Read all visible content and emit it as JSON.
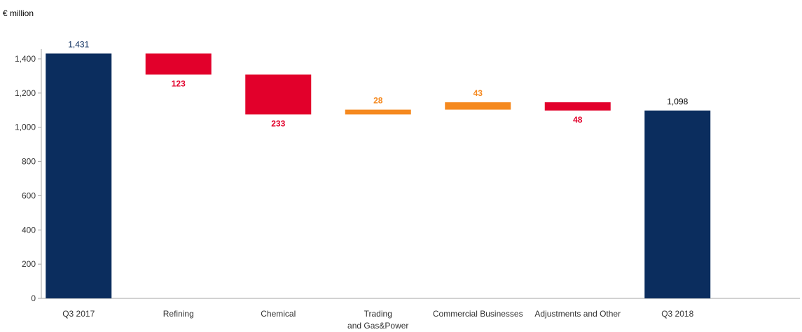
{
  "chart_data": {
    "type": "waterfall",
    "unit_label": "€ million",
    "ylim": [
      0,
      1400
    ],
    "yticks": [
      0,
      200,
      400,
      600,
      800,
      1000,
      1200,
      1400
    ],
    "ytick_labels": [
      "0",
      "200",
      "400",
      "600",
      "800",
      "1,000",
      "1,200",
      "1,400"
    ],
    "grid": false,
    "categories": [
      "Q3 2017",
      "Refining",
      "Chemical",
      "Trading\nand Gas&Power",
      "Commercial Businesses",
      "Adjustments and Other",
      "Q3 2018"
    ],
    "bars": [
      {
        "kind": "total",
        "start": 0,
        "end": 1431,
        "label": "1,431",
        "color": "#0b2d5e",
        "label_color": "#0b2d5e",
        "label_pos": "above"
      },
      {
        "kind": "delta",
        "start": 1431,
        "end": 1308,
        "label": "123",
        "color": "#e2002b",
        "label_color": "#e2002b",
        "label_pos": "below"
      },
      {
        "kind": "delta",
        "start": 1308,
        "end": 1075,
        "label": "233",
        "color": "#e2002b",
        "label_color": "#e2002b",
        "label_pos": "below"
      },
      {
        "kind": "delta",
        "start": 1075,
        "end": 1103,
        "label": "28",
        "color": "#f5891f",
        "label_color": "#f5891f",
        "label_pos": "above"
      },
      {
        "kind": "delta",
        "start": 1103,
        "end": 1146,
        "label": "43",
        "color": "#f5891f",
        "label_color": "#f5891f",
        "label_pos": "above"
      },
      {
        "kind": "delta",
        "start": 1146,
        "end": 1098,
        "label": "48",
        "color": "#e2002b",
        "label_color": "#e2002b",
        "label_pos": "below"
      },
      {
        "kind": "total",
        "start": 0,
        "end": 1098,
        "label": "1,098",
        "color": "#0b2d5e",
        "label_color": "#000000",
        "label_pos": "above"
      }
    ]
  }
}
